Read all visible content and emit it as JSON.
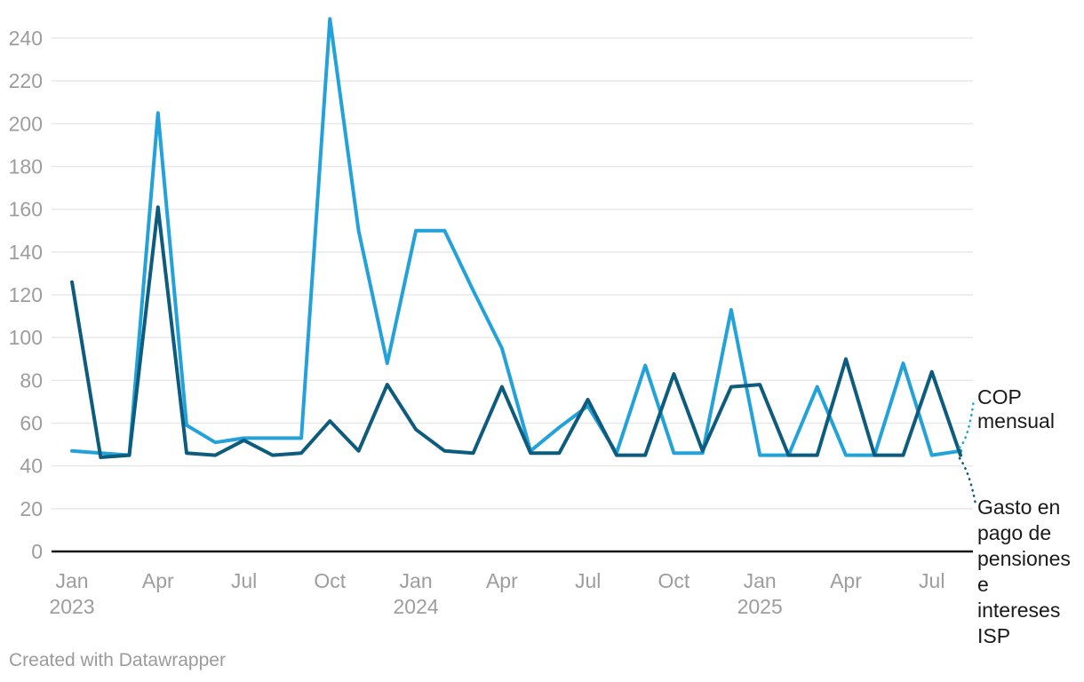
{
  "chart_data": {
    "type": "line",
    "x": [
      "Jan 2023",
      "Feb 2023",
      "Mar 2023",
      "Apr 2023",
      "May 2023",
      "Jun 2023",
      "Jul 2023",
      "Aug 2023",
      "Sep 2023",
      "Oct 2023",
      "Nov 2023",
      "Dec 2023",
      "Jan 2024",
      "Feb 2024",
      "Mar 2024",
      "Apr 2024",
      "May 2024",
      "Jun 2024",
      "Jul 2024",
      "Aug 2024",
      "Sep 2024",
      "Oct 2024",
      "Nov 2024",
      "Dec 2024",
      "Jan 2025",
      "Feb 2025",
      "Mar 2025",
      "Apr 2025",
      "May 2025",
      "Jun 2025",
      "Jul 2025",
      "Aug 2025"
    ],
    "series": [
      {
        "name": "COP mensual",
        "color": "#22a2d9",
        "values": [
          47,
          46,
          45,
          205,
          59,
          51,
          53,
          53,
          53,
          249,
          150,
          88,
          150,
          150,
          122,
          95,
          47,
          58,
          68,
          46,
          87,
          46,
          46,
          113,
          45,
          45,
          77,
          45,
          45,
          88,
          45,
          47
        ]
      },
      {
        "name": "Gasto en pago de pensiones e intereses ISP",
        "color": "#0d5c7d",
        "values": [
          126,
          44,
          45,
          161,
          46,
          45,
          52,
          45,
          46,
          61,
          47,
          78,
          57,
          47,
          46,
          77,
          46,
          46,
          71,
          45,
          45,
          83,
          47,
          77,
          78,
          45,
          45,
          90,
          45,
          45,
          84,
          45
        ]
      }
    ],
    "title": "",
    "xlabel": "",
    "ylabel": "",
    "ylim": [
      0,
      240
    ],
    "yticks": [
      0,
      20,
      40,
      60,
      80,
      100,
      120,
      140,
      160,
      180,
      200,
      220,
      240
    ],
    "xticks": [
      {
        "i": 0,
        "month": "Jan",
        "year": "2023"
      },
      {
        "i": 3,
        "month": "Apr"
      },
      {
        "i": 6,
        "month": "Jul"
      },
      {
        "i": 9,
        "month": "Oct"
      },
      {
        "i": 12,
        "month": "Jan",
        "year": "2024"
      },
      {
        "i": 15,
        "month": "Apr"
      },
      {
        "i": 18,
        "month": "Jul"
      },
      {
        "i": 21,
        "month": "Oct"
      },
      {
        "i": 24,
        "month": "Jan",
        "year": "2025"
      },
      {
        "i": 27,
        "month": "Apr"
      },
      {
        "i": 30,
        "month": "Jul"
      }
    ],
    "grid": "horizontal",
    "legend_position": "right-edge-annotations"
  },
  "annotations": {
    "cop_label": "COP\nmensual",
    "gasto_label": "Gasto en\npago de\npensiones\ne\nintereses\nISP"
  },
  "footer": {
    "credit": "Created with Datawrapper"
  },
  "colors": {
    "cop": "#22a2d9",
    "gasto": "#0d5c7d",
    "axis_text": "#9d9d9d",
    "grid_line": "#e8e8e8",
    "axis_line": "#161616",
    "annotation_text": "#1a1a1a"
  }
}
